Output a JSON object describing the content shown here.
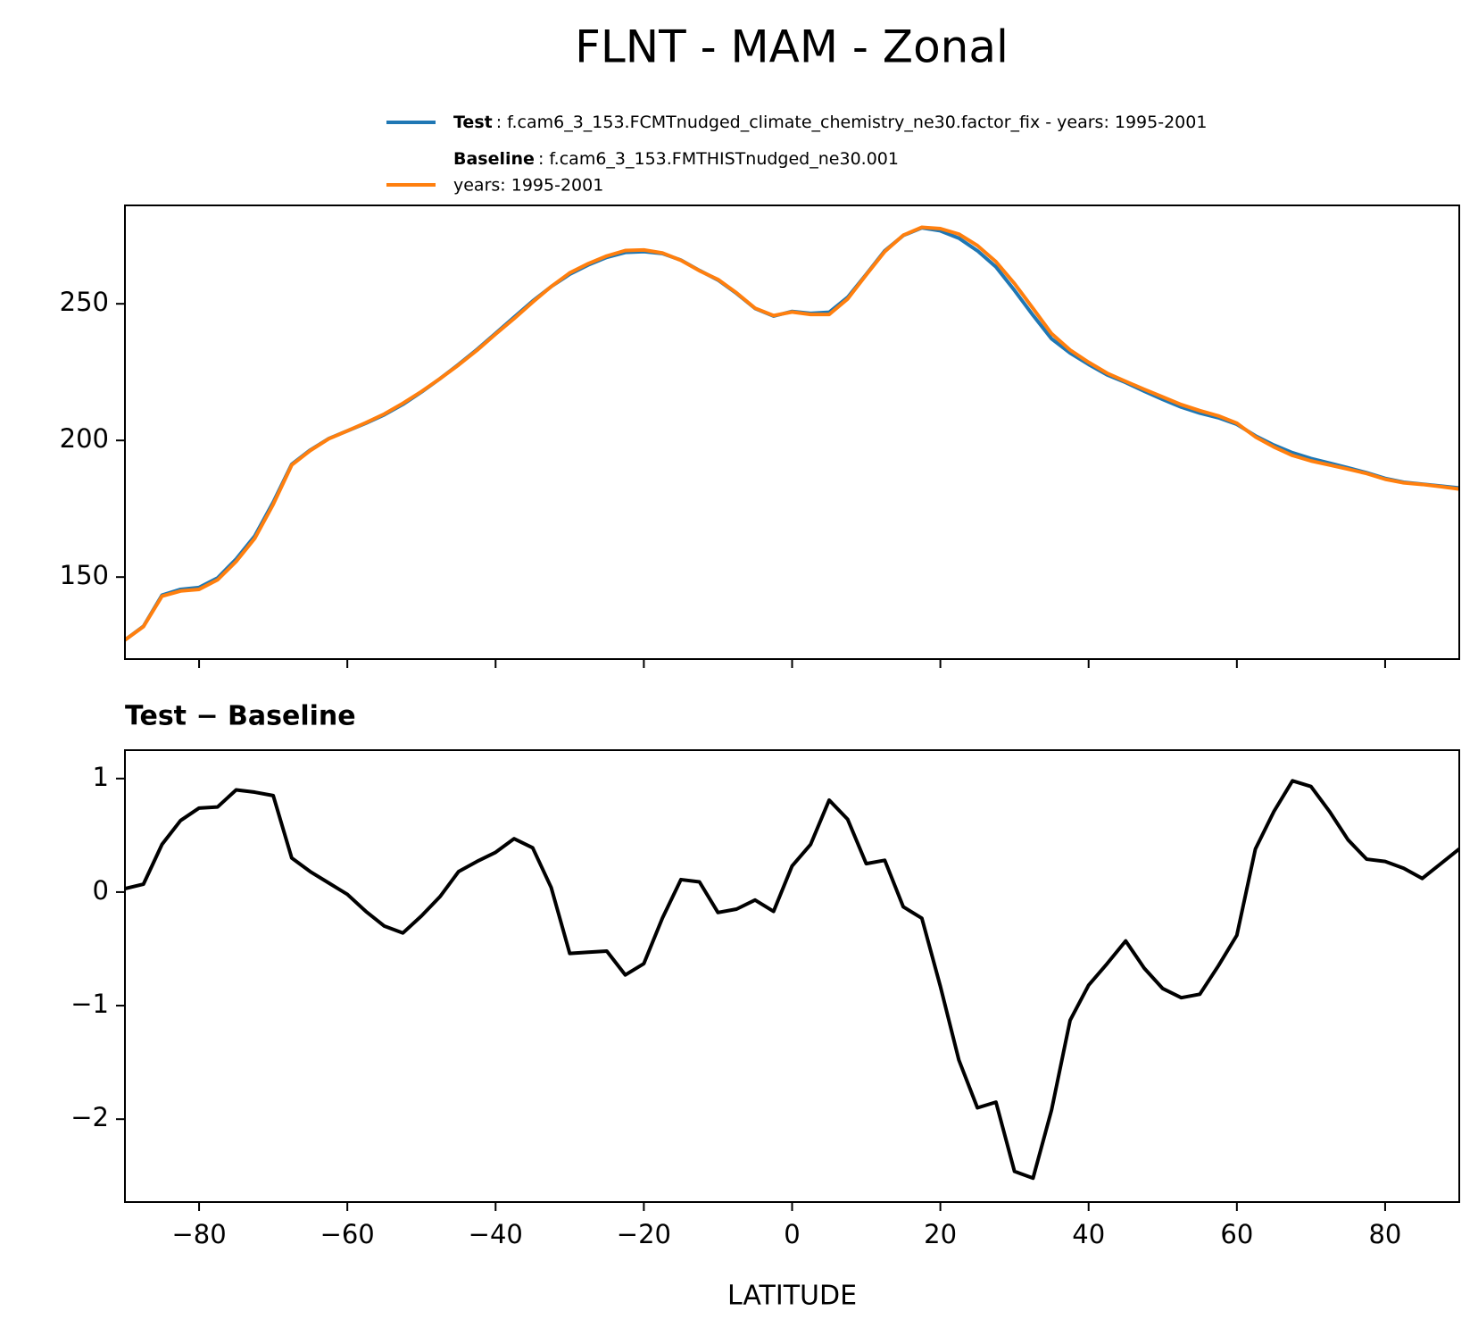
{
  "title": "FLNT - MAM - Zonal",
  "chart_data": [
    {
      "type": "line",
      "x": [
        -90,
        -87.5,
        -85,
        -82.5,
        -80,
        -77.5,
        -75,
        -72.5,
        -70,
        -67.5,
        -65,
        -62.5,
        -60,
        -57.5,
        -55,
        -52.5,
        -50,
        -47.5,
        -45,
        -42.5,
        -40,
        -37.5,
        -35,
        -32.5,
        -30,
        -27.5,
        -25,
        -22.5,
        -20,
        -17.5,
        -15,
        -12.5,
        -10,
        -7.5,
        -5,
        -2.5,
        0,
        2.5,
        5,
        7.5,
        10,
        12.5,
        15,
        17.5,
        20,
        22.5,
        25,
        27.5,
        30,
        32.5,
        35,
        37.5,
        40,
        42.5,
        45,
        47.5,
        50,
        52.5,
        55,
        57.5,
        60,
        62.5,
        65,
        67.5,
        70,
        72.5,
        75,
        77.5,
        80,
        82.5,
        85,
        87.5,
        90
      ],
      "series": [
        {
          "name": "Test",
          "description": [
            ": f.cam6_3_153.FCMTnudged_climate_chemistry_ne30.factor_fix - years: 1995-2001"
          ],
          "color": "#1f77b4",
          "values": [
            127,
            132,
            143.4,
            145.5,
            146.2,
            149.7,
            156.6,
            165,
            177.4,
            191.3,
            196.5,
            200.7,
            203.5,
            206.3,
            209.4,
            213.2,
            217.7,
            222.6,
            227.8,
            233.3,
            239.2,
            245.1,
            251,
            256.3,
            260.8,
            264.2,
            267,
            268.8,
            269.1,
            268.4,
            266,
            262.2,
            258.7,
            253.8,
            248.3,
            245.5,
            247.2,
            246.5,
            246.9,
            252.4,
            260.8,
            269.4,
            275,
            277.8,
            276.7,
            274,
            269.4,
            263.5,
            254.9,
            245.8,
            237.2,
            232,
            227.8,
            224,
            221.2,
            218,
            215,
            212.2,
            210,
            208.3,
            205.9,
            201.7,
            198.3,
            195.5,
            193.4,
            191.7,
            190,
            188.2,
            186.1,
            184.7,
            184,
            183.3,
            182.6
          ]
        },
        {
          "name": "Baseline",
          "description": [
            ": f.cam6_3_153.FMTHISTnudged_ne30.001",
            "years: 1995-2001"
          ],
          "color": "#ff7f0e",
          "values": [
            127.0,
            131.9,
            143.0,
            144.9,
            145.5,
            149.0,
            155.7,
            164.1,
            176.6,
            191.0,
            196.3,
            200.6,
            203.5,
            206.5,
            209.7,
            213.6,
            217.9,
            222.6,
            227.6,
            233.0,
            238.9,
            244.6,
            250.6,
            256.3,
            261.3,
            264.7,
            267.5,
            269.5,
            269.7,
            268.6,
            265.9,
            262.1,
            258.9,
            254.0,
            248.4,
            245.7,
            247.0,
            246.1,
            246.1,
            251.8,
            260.6,
            269.1,
            275.1,
            278.0,
            277.5,
            275.5,
            271.3,
            265.4,
            257.4,
            248.3,
            239.1,
            233.1,
            228.6,
            224.6,
            221.6,
            218.7,
            215.9,
            213.1,
            210.9,
            209.0,
            206.3,
            201.3,
            197.6,
            194.5,
            192.5,
            191.0,
            189.5,
            187.9,
            185.8,
            184.5,
            183.9,
            183.1,
            182.2
          ]
        }
      ],
      "xlim": [
        -90,
        90
      ],
      "xticks": [
        -80,
        -60,
        -40,
        -20,
        0,
        20,
        40,
        60,
        80
      ],
      "ylim": [
        120,
        286
      ],
      "yticks": [
        150,
        200,
        250
      ]
    },
    {
      "type": "line",
      "title": "Test − Baseline",
      "xlabel": "LATITUDE",
      "x": [
        -90,
        -87.5,
        -85,
        -82.5,
        -80,
        -77.5,
        -75,
        -72.5,
        -70,
        -67.5,
        -65,
        -62.5,
        -60,
        -57.5,
        -55,
        -52.5,
        -50,
        -47.5,
        -45,
        -42.5,
        -40,
        -37.5,
        -35,
        -32.5,
        -30,
        -27.5,
        -25,
        -22.5,
        -20,
        -17.5,
        -15,
        -12.5,
        -10,
        -7.5,
        -5,
        -2.5,
        0,
        2.5,
        5,
        7.5,
        10,
        12.5,
        15,
        17.5,
        20,
        22.5,
        25,
        27.5,
        30,
        32.5,
        35,
        37.5,
        40,
        42.5,
        45,
        47.5,
        50,
        52.5,
        55,
        57.5,
        60,
        62.5,
        65,
        67.5,
        70,
        72.5,
        75,
        77.5,
        80,
        82.5,
        85,
        87.5,
        90
      ],
      "color": "#000000",
      "values": [
        0.03,
        0.07,
        0.42,
        0.63,
        0.74,
        0.75,
        0.9,
        0.88,
        0.85,
        0.3,
        0.18,
        0.08,
        -0.02,
        -0.17,
        -0.3,
        -0.36,
        -0.21,
        -0.04,
        0.18,
        0.27,
        0.35,
        0.47,
        0.39,
        0.04,
        -0.54,
        -0.53,
        -0.52,
        -0.73,
        -0.63,
        -0.23,
        0.11,
        0.09,
        -0.18,
        -0.15,
        -0.07,
        -0.17,
        0.23,
        0.42,
        0.81,
        0.64,
        0.25,
        0.28,
        -0.13,
        -0.23,
        -0.83,
        -1.48,
        -1.9,
        -1.85,
        -2.46,
        -2.52,
        -1.92,
        -1.13,
        -0.82,
        -0.63,
        -0.43,
        -0.67,
        -0.85,
        -0.93,
        -0.9,
        -0.65,
        -0.38,
        0.38,
        0.71,
        0.98,
        0.93,
        0.71,
        0.46,
        0.29,
        0.27,
        0.21,
        0.12,
        0.25,
        0.38
      ],
      "xlim": [
        -90,
        90
      ],
      "xticks": [
        {
          "value": -80,
          "label": "−80"
        },
        {
          "value": -60,
          "label": "−60"
        },
        {
          "value": -40,
          "label": "−40"
        },
        {
          "value": -20,
          "label": "−20"
        },
        0,
        20,
        40,
        60,
        80
      ],
      "ylim": [
        -2.73,
        1.25
      ],
      "yticks": [
        {
          "value": -2,
          "label": "−2"
        },
        {
          "value": -1,
          "label": "−1"
        },
        0,
        1
      ]
    }
  ]
}
